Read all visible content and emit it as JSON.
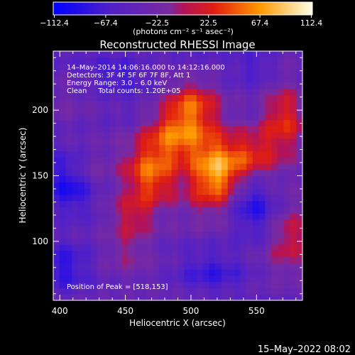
{
  "chart_data": {
    "type": "heatmap",
    "title": "Reconstructed RHESSI Image",
    "xlabel": "Heliocentric X (arcsec)",
    "ylabel": "Heliocentric Y (arcsec)",
    "xlim": [
      395,
      585
    ],
    "ylim": [
      55,
      245
    ],
    "x_ticks": [
      400,
      450,
      500,
      550
    ],
    "y_ticks": [
      100,
      150,
      200
    ],
    "colorbar": {
      "label": "(photons cm⁻² s⁻¹ asec⁻²)",
      "range": [
        -112.4,
        112.4
      ],
      "ticks": [
        "−112.4",
        "−67.4",
        "−22.5",
        "22.5",
        "67.4",
        "112.4"
      ]
    },
    "annotations": [
      "14–May–2014 14:06:16.000 to 14:12:16.000",
      "Detectors: 3F 4F 5F 6F 7F 8F, Att 1",
      "Energy Range: 3.0 – 6.0 keV",
      "Clean     Total counts: 1.20E+05"
    ],
    "peak_label": "Position of Peak = [518,153]",
    "peak": [
      518,
      153
    ],
    "sources": [
      {
        "x": 518,
        "y": 153,
        "amp": 112,
        "sx": 14,
        "sy": 18
      },
      {
        "x": 490,
        "y": 180,
        "amp": 85,
        "sx": 18,
        "sy": 14
      },
      {
        "x": 470,
        "y": 150,
        "amp": 80,
        "sx": 14,
        "sy": 16
      },
      {
        "x": 455,
        "y": 120,
        "amp": 55,
        "sx": 12,
        "sy": 12
      },
      {
        "x": 500,
        "y": 205,
        "amp": 60,
        "sx": 14,
        "sy": 12
      },
      {
        "x": 570,
        "y": 195,
        "amp": 70,
        "sx": 12,
        "sy": 18
      },
      {
        "x": 545,
        "y": 165,
        "amp": 55,
        "sx": 14,
        "sy": 14
      },
      {
        "x": 575,
        "y": 105,
        "amp": 50,
        "sx": 10,
        "sy": 18
      },
      {
        "x": 420,
        "y": 155,
        "amp": 25,
        "sx": 10,
        "sy": 10
      },
      {
        "x": 450,
        "y": 95,
        "amp": 20,
        "sx": 12,
        "sy": 10
      }
    ],
    "negative_regions": [
      {
        "x": 408,
        "y": 140,
        "amp": -60,
        "sx": 12,
        "sy": 16
      },
      {
        "x": 545,
        "y": 130,
        "amp": -45,
        "sx": 12,
        "sy": 18
      },
      {
        "x": 445,
        "y": 230,
        "amp": -40,
        "sx": 16,
        "sy": 10
      },
      {
        "x": 405,
        "y": 80,
        "amp": -35,
        "sx": 14,
        "sy": 14
      },
      {
        "x": 520,
        "y": 75,
        "amp": -30,
        "sx": 20,
        "sy": 12
      },
      {
        "x": 550,
        "y": 235,
        "amp": -35,
        "sx": 14,
        "sy": 10
      }
    ]
  },
  "footer": {
    "timestamp": "15–May–2022 08:02"
  }
}
